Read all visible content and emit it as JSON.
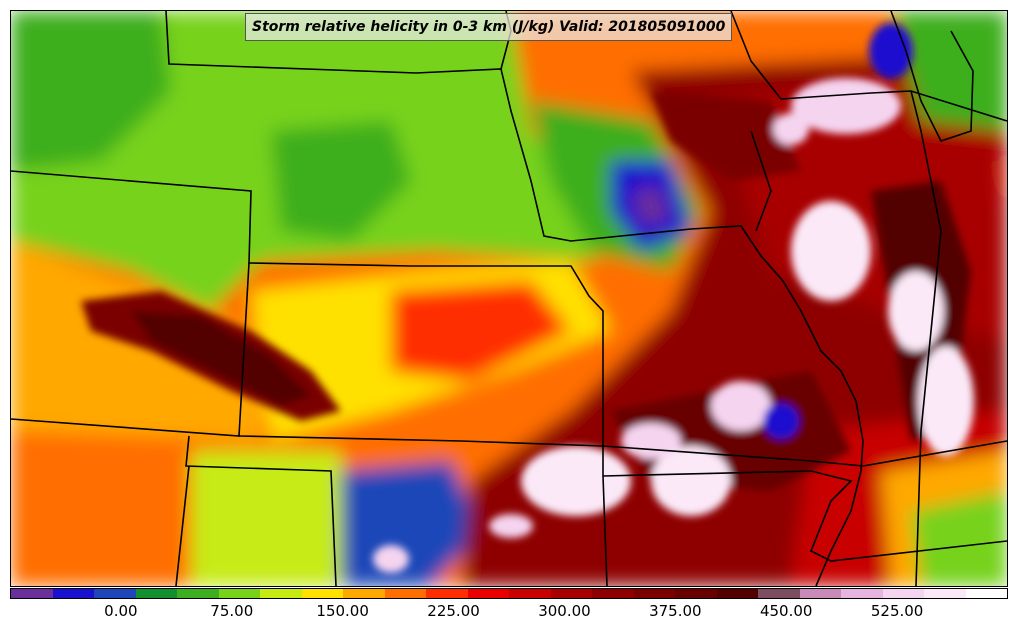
{
  "title": "Storm relative helicity in 0-3 km (J/kg) Valid: 201805091000",
  "colorbar": {
    "min": -75,
    "max": 600,
    "step": 25,
    "tick_values": [
      0,
      75,
      150,
      225,
      300,
      375,
      450,
      525
    ],
    "tick_labels": [
      "0.00",
      "75.00",
      "150.00",
      "225.00",
      "300.00",
      "375.00",
      "450.00",
      "525.00"
    ],
    "colors": [
      "#6b2f9c",
      "#1a10cf",
      "#1f46b8",
      "#11902d",
      "#3cae1f",
      "#77d21a",
      "#c6eb14",
      "#ffe100",
      "#ffa800",
      "#ff6e00",
      "#ff2e00",
      "#ea0000",
      "#c80000",
      "#a80000",
      "#8e0000",
      "#7a0000",
      "#680000",
      "#520000",
      "#7c4d5e",
      "#c88ab6",
      "#e6b5df",
      "#f5d4f0",
      "#fbe9f8",
      "#ffffff"
    ]
  }
}
